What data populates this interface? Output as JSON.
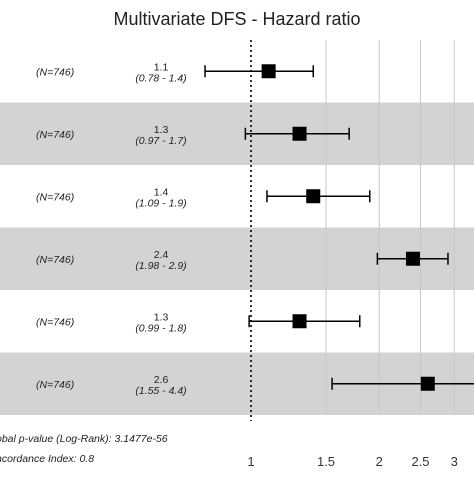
{
  "chart_data": {
    "type": "forest",
    "title": "Multivariate DFS - Hazard ratio",
    "x_scale": "log",
    "xlim": [
      0.5,
      3.5
    ],
    "x_ticks": [
      1,
      1.5,
      2,
      2.5,
      3
    ],
    "x_tick_labels": [
      "1",
      "1.5",
      "2",
      "2.5",
      "3"
    ],
    "reference_line": 1,
    "grid": true,
    "rows": [
      {
        "n_label": "(N=746)",
        "hr": 1.1,
        "hr_label": "1.1",
        "ci": [
          0.78,
          1.4
        ],
        "ci_label": "(0.78 - 1.4)",
        "shaded": false
      },
      {
        "n_label": "(N=746)",
        "hr": 1.3,
        "hr_label": "1.3",
        "ci": [
          0.97,
          1.7
        ],
        "ci_label": "(0.97 - 1.7)",
        "shaded": true
      },
      {
        "n_label": "(N=746)",
        "hr": 1.4,
        "hr_label": "1.4",
        "ci": [
          1.09,
          1.9
        ],
        "ci_label": "(1.09 - 1.9)",
        "shaded": false
      },
      {
        "n_label": "(N=746)",
        "hr": 2.4,
        "hr_label": "2.4",
        "ci": [
          1.98,
          2.9
        ],
        "ci_label": "(1.98 - 2.9)",
        "shaded": true
      },
      {
        "n_label": "(N=746)",
        "hr": 1.3,
        "hr_label": "1.3",
        "ci": [
          0.99,
          1.8
        ],
        "ci_label": "(0.99 - 1.8)",
        "shaded": false
      },
      {
        "n_label": "(N=746)",
        "hr": 2.6,
        "hr_label": "2.6",
        "ci": [
          1.55,
          4.4
        ],
        "ci_label": "(1.55 - 4.4)",
        "shaded": true
      }
    ],
    "footer": {
      "pvalue_text": "obal p-value (Log-Rank): 3.1477e-56",
      "concordance_text": "ncordance Index: 0.8"
    },
    "colors": {
      "band": "#d3d3d3",
      "marker": "#000000",
      "grid": "#c8c8c8"
    }
  }
}
